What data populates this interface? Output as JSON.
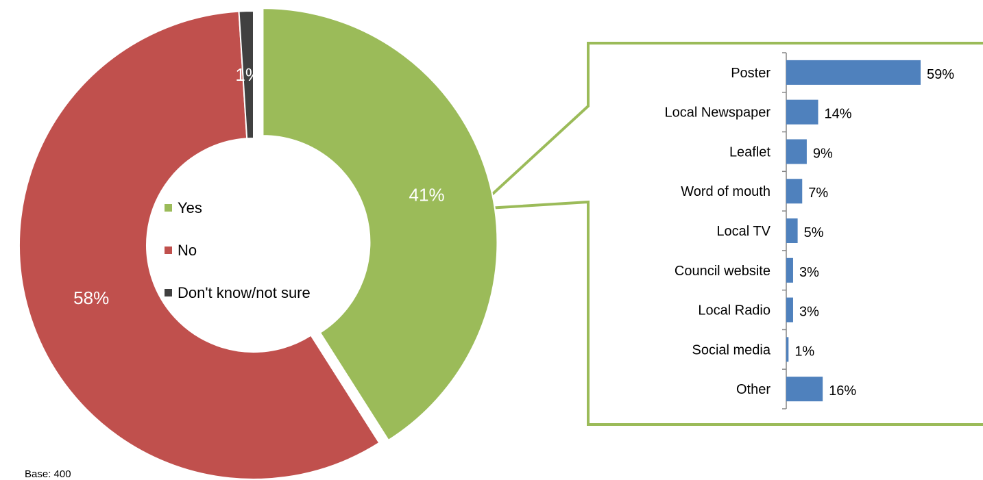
{
  "chart_data": [
    {
      "type": "pie",
      "donut": true,
      "categories": [
        "Yes",
        "No",
        "Don't know/not sure"
      ],
      "values": [
        41,
        58,
        1
      ],
      "labels": [
        "41%",
        "58%",
        "1%"
      ],
      "colors": [
        "#9BBB59",
        "#C0504D",
        "#404040"
      ],
      "exploded": "Yes",
      "legend": {
        "placement": "center",
        "entries": [
          "Yes",
          "No",
          "Don't know/not sure"
        ]
      },
      "note": "Base: 400"
    },
    {
      "type": "bar",
      "orientation": "horizontal",
      "categories": [
        "Poster",
        "Local Newspaper",
        "Leaflet",
        "Word of mouth",
        "Local TV",
        "Council website",
        "Local Radio",
        "Social media",
        "Other"
      ],
      "values": [
        59,
        14,
        9,
        7,
        5,
        3,
        3,
        1,
        16
      ],
      "value_labels": [
        "59%",
        "14%",
        "9%",
        "7%",
        "5%",
        "3%",
        "3%",
        "1%",
        "16%"
      ],
      "color": "#4F81BD",
      "frame_color": "#9BBB59",
      "xlim": [
        0,
        100
      ],
      "grid": false
    }
  ]
}
